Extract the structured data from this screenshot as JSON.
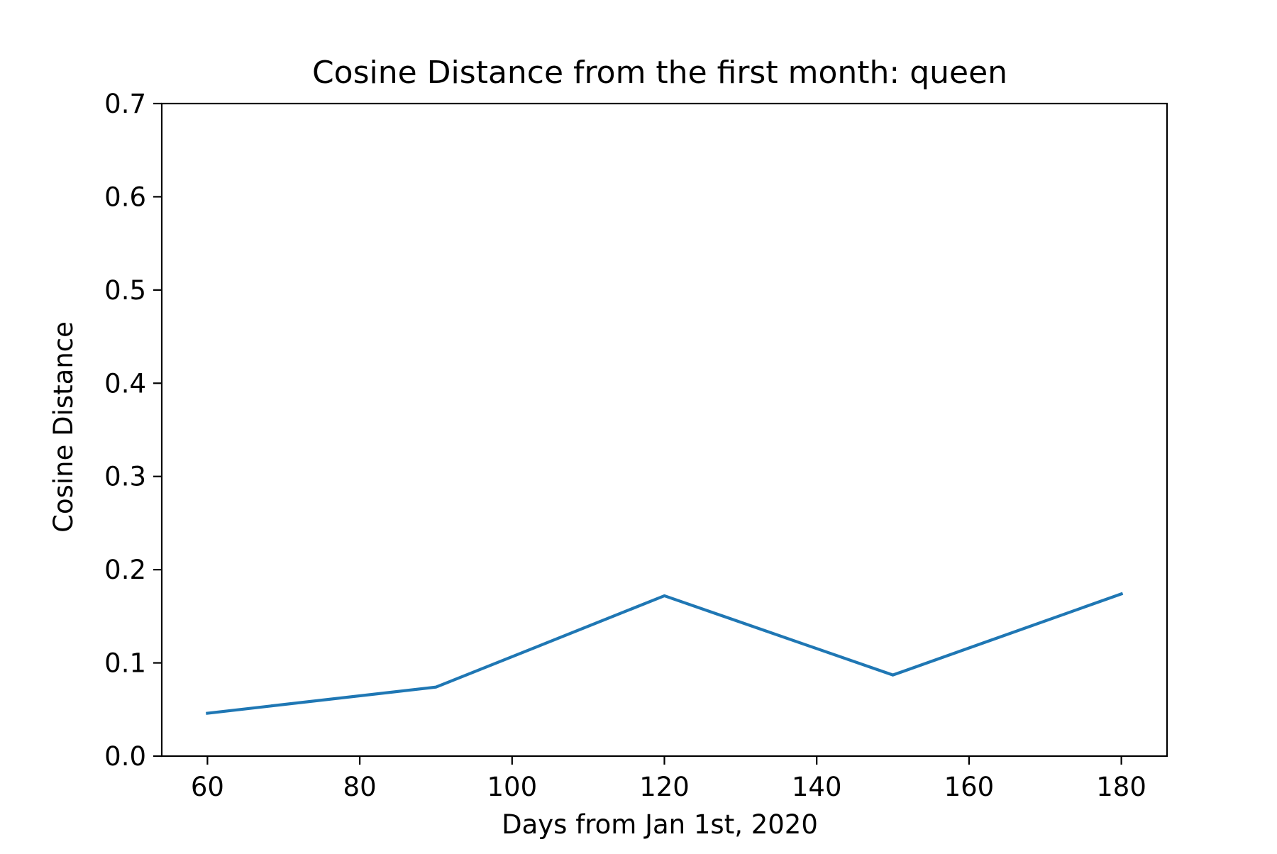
{
  "chart_data": {
    "type": "line",
    "title": "Cosine Distance from the first month: queen",
    "xlabel": "Days from Jan 1st, 2020",
    "ylabel": "Cosine Distance",
    "xlim": [
      54,
      186
    ],
    "ylim": [
      0,
      0.7
    ],
    "xticks": [
      60,
      80,
      100,
      120,
      140,
      160,
      180
    ],
    "yticks": [
      0.0,
      0.1,
      0.2,
      0.3,
      0.4,
      0.5,
      0.6,
      0.7
    ],
    "ytick_labels": [
      "0.0",
      "0.1",
      "0.2",
      "0.3",
      "0.4",
      "0.5",
      "0.6",
      "0.7"
    ],
    "grid": false,
    "series": [
      {
        "color": "#1f77b4",
        "x": [
          60,
          90,
          120,
          150,
          180
        ],
        "y": [
          0.046,
          0.074,
          0.172,
          0.087,
          0.174
        ]
      }
    ]
  }
}
